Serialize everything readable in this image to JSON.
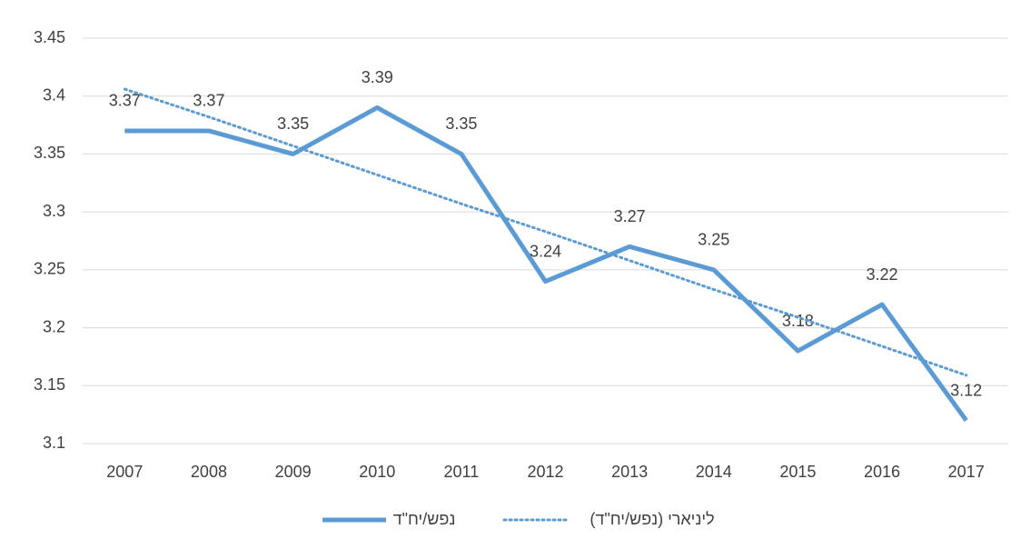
{
  "chart_data": {
    "type": "line",
    "categories": [
      "2007",
      "2008",
      "2009",
      "2010",
      "2011",
      "2012",
      "2013",
      "2014",
      "2015",
      "2016",
      "2017"
    ],
    "series": [
      {
        "name": "נפש/יח\"ד",
        "color": "#5b9bd5",
        "style": "solid",
        "data_labels": true,
        "values": [
          3.37,
          3.37,
          3.35,
          3.39,
          3.35,
          3.24,
          3.27,
          3.25,
          3.18,
          3.22,
          3.12
        ]
      },
      {
        "name": "ליניארי (נפש/יח\"ד)",
        "color": "#5b9bd5",
        "style": "dotted",
        "data_labels": false,
        "values": [
          3.406,
          3.382,
          3.357,
          3.332,
          3.307,
          3.283,
          3.258,
          3.233,
          3.209,
          3.184,
          3.159
        ]
      }
    ],
    "ylim": [
      3.1,
      3.45
    ],
    "yticks": [
      3.1,
      3.15,
      3.2,
      3.25,
      3.3,
      3.35,
      3.4,
      3.45
    ],
    "grid": true,
    "legend": "bottom"
  }
}
